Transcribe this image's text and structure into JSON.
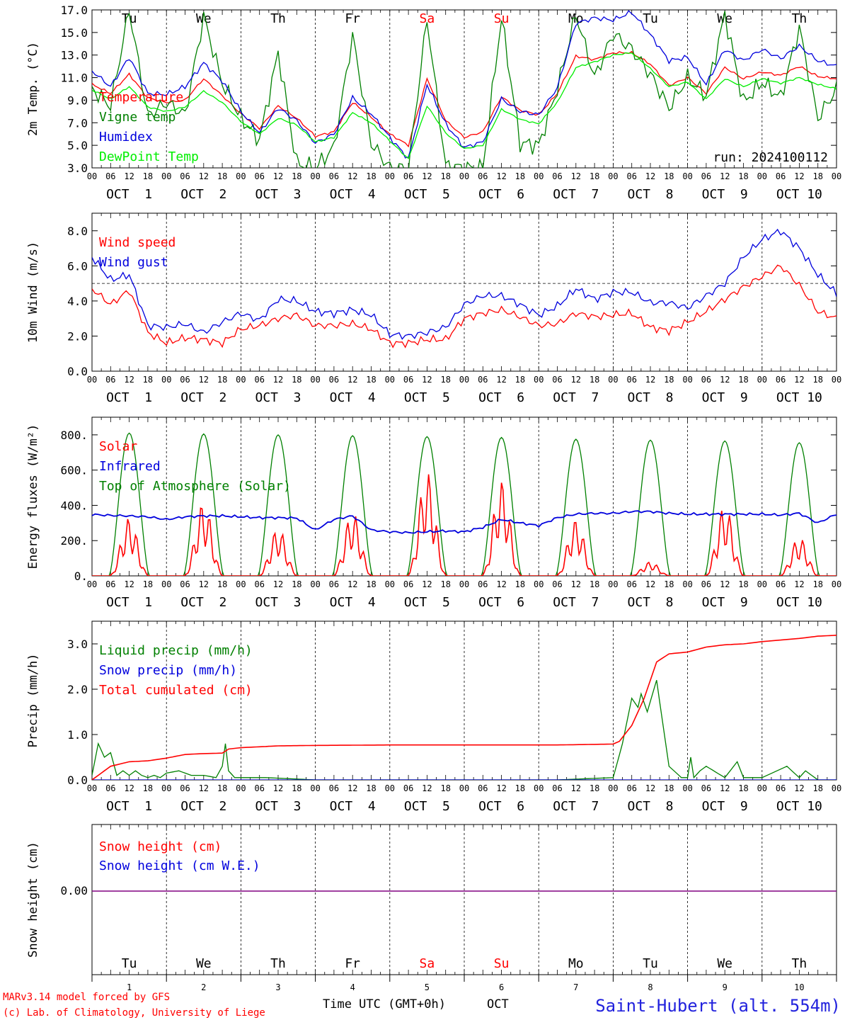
{
  "chart_data": [
    {
      "type": "line",
      "ylabel": "2m Temp. (°C)",
      "ylim": [
        3.0,
        17.0
      ],
      "yticks": [
        "3.0",
        "5.0",
        "7.0",
        "9.0",
        "11.0",
        "13.0",
        "15.0",
        "17.0"
      ],
      "run_label": "run: 2024100112",
      "legend_position": "left",
      "x_unit": "hours since 2024-10-01 00 UTC",
      "series": [
        {
          "name": "Temperature",
          "color": "#ff0000",
          "x": [
            0,
            6,
            12,
            18,
            24,
            30,
            36,
            42,
            48,
            54,
            60,
            66,
            72,
            78,
            84,
            90,
            96,
            102,
            108,
            114,
            120,
            126,
            132,
            138,
            144,
            150,
            156,
            162,
            168,
            174,
            180,
            186,
            192,
            198,
            204,
            210,
            216,
            222,
            228,
            234,
            240
          ],
          "values": [
            10.4,
            9.6,
            11.3,
            9.2,
            8.8,
            9.0,
            10.9,
            9.4,
            7.8,
            6.5,
            8.5,
            7.4,
            5.8,
            6.2,
            8.8,
            7.5,
            6.0,
            5.0,
            10.9,
            7.2,
            5.7,
            6.2,
            9.3,
            8.1,
            7.7,
            9.6,
            12.9,
            12.6,
            13.2,
            13.2,
            12.2,
            10.3,
            11.0,
            9.6,
            11.9,
            10.9,
            11.5,
            11.2,
            12.0,
            11.1,
            10.9
          ]
        },
        {
          "name": "Vigne temp",
          "color": "#008000",
          "x": [
            0,
            6,
            12,
            18,
            24,
            30,
            36,
            42,
            48,
            54,
            60,
            66,
            72,
            78,
            84,
            90,
            96,
            102,
            108,
            114,
            120,
            126,
            132,
            138,
            144,
            150,
            156,
            162,
            168,
            174,
            180,
            186,
            192,
            198,
            204,
            210,
            216,
            222,
            228,
            234,
            240
          ],
          "values": [
            10.0,
            8.5,
            17.0,
            7.6,
            8.8,
            7.7,
            16.4,
            10.5,
            7.4,
            5.5,
            13.2,
            3.4,
            3.0,
            4.8,
            14.7,
            5.2,
            3.0,
            3.0,
            16.2,
            3.2,
            3.0,
            3.0,
            16.3,
            5.2,
            5.0,
            10.0,
            16.6,
            11.0,
            14.9,
            13.5,
            11.3,
            8.3,
            11.0,
            9.4,
            16.6,
            8.8,
            10.6,
            9.2,
            15.4,
            7.4,
            10.0
          ]
        },
        {
          "name": "Humidex",
          "color": "#0000dd",
          "x": [
            0,
            6,
            12,
            18,
            24,
            30,
            36,
            42,
            48,
            54,
            60,
            66,
            72,
            78,
            84,
            90,
            96,
            102,
            108,
            114,
            120,
            126,
            132,
            138,
            144,
            150,
            156,
            162,
            168,
            174,
            180,
            186,
            192,
            198,
            204,
            210,
            216,
            222,
            228,
            234,
            240
          ],
          "values": [
            11.6,
            10.2,
            12.8,
            9.6,
            9.5,
            10.2,
            12.3,
            10.7,
            8.0,
            6.1,
            8.3,
            7.2,
            5.2,
            6.0,
            9.2,
            7.8,
            5.7,
            3.8,
            10.4,
            6.9,
            4.8,
            5.3,
            9.1,
            8.0,
            7.7,
            10.1,
            15.8,
            16.3,
            16.1,
            16.8,
            14.8,
            12.5,
            12.8,
            10.4,
            13.5,
            12.5,
            13.5,
            12.7,
            13.8,
            12.5,
            12.0
          ]
        },
        {
          "name": "DewPoint Temp",
          "color": "#00ee00",
          "x": [
            0,
            6,
            12,
            18,
            24,
            30,
            36,
            42,
            48,
            54,
            60,
            66,
            72,
            78,
            84,
            90,
            96,
            102,
            108,
            114,
            120,
            126,
            132,
            138,
            144,
            150,
            156,
            162,
            168,
            174,
            180,
            186,
            192,
            198,
            204,
            210,
            216,
            222,
            228,
            234,
            240
          ],
          "values": [
            9.9,
            9.1,
            10.2,
            8.4,
            8.0,
            8.4,
            9.8,
            8.8,
            7.1,
            6.0,
            7.4,
            6.8,
            5.3,
            5.7,
            7.9,
            7.0,
            5.4,
            3.8,
            8.5,
            6.1,
            4.7,
            5.0,
            8.2,
            7.3,
            6.9,
            8.8,
            11.9,
            12.4,
            13.0,
            13.2,
            11.8,
            10.2,
            10.6,
            9.1,
            10.9,
            10.2,
            10.9,
            10.5,
            11.0,
            10.4,
            10.0
          ]
        }
      ]
    },
    {
      "type": "line",
      "ylabel": "10m Wind (m/s)",
      "ylim": [
        0.0,
        9.0
      ],
      "yticks": [
        "0.0",
        "2.0",
        "4.0",
        "6.0",
        "8.0"
      ],
      "reference_line": 5.0,
      "legend_position": "left",
      "series": [
        {
          "name": "Wind speed",
          "color": "#ff0000",
          "x": [
            0,
            6,
            12,
            18,
            24,
            30,
            36,
            42,
            48,
            54,
            60,
            66,
            72,
            78,
            84,
            90,
            96,
            102,
            108,
            114,
            120,
            126,
            132,
            138,
            144,
            150,
            156,
            162,
            168,
            174,
            180,
            186,
            192,
            198,
            204,
            210,
            216,
            222,
            228,
            234,
            240
          ],
          "values": [
            4.7,
            3.8,
            4.6,
            2.2,
            1.6,
            1.9,
            1.8,
            1.6,
            2.4,
            2.6,
            3.0,
            3.2,
            2.6,
            2.6,
            2.7,
            2.4,
            1.6,
            1.6,
            1.8,
            1.8,
            3.0,
            3.3,
            3.5,
            3.1,
            2.6,
            2.7,
            3.3,
            3.1,
            3.2,
            3.3,
            2.5,
            2.3,
            2.8,
            3.4,
            4.1,
            4.8,
            5.4,
            6.0,
            4.9,
            3.4,
            3.0
          ]
        },
        {
          "name": "Wind gust",
          "color": "#0000dd",
          "x": [
            0,
            6,
            12,
            18,
            24,
            30,
            36,
            42,
            48,
            54,
            60,
            66,
            72,
            78,
            84,
            90,
            96,
            102,
            108,
            114,
            120,
            126,
            132,
            138,
            144,
            150,
            156,
            162,
            168,
            174,
            180,
            186,
            192,
            198,
            204,
            210,
            216,
            222,
            228,
            234,
            240
          ],
          "values": [
            6.5,
            5.2,
            5.5,
            2.6,
            2.5,
            2.7,
            2.2,
            2.8,
            3.3,
            2.9,
            4.1,
            4.0,
            3.4,
            3.3,
            3.5,
            3.2,
            2.1,
            2.0,
            2.2,
            2.5,
            3.8,
            4.3,
            4.3,
            3.8,
            3.2,
            3.7,
            4.7,
            4.1,
            4.5,
            4.5,
            3.9,
            3.9,
            3.6,
            4.3,
            5.0,
            6.5,
            7.5,
            8.0,
            7.0,
            5.5,
            4.4
          ]
        }
      ]
    },
    {
      "type": "line",
      "ylabel": "Energy fluxes (W/m²)",
      "ylim": [
        0,
        900
      ],
      "yticks": [
        "0.",
        "200.",
        "400.",
        "600.",
        "800."
      ],
      "legend_position": "left",
      "solar_peaks": [
        330,
        420,
        270,
        360,
        590,
        540,
        320,
        80,
        400,
        220
      ],
      "toa_peaks": [
        810,
        805,
        800,
        795,
        790,
        785,
        775,
        770,
        765,
        755
      ],
      "series": [
        {
          "name": "Solar",
          "color": "#ff0000"
        },
        {
          "name": "Infrared",
          "color": "#0000dd",
          "x": [
            0,
            6,
            12,
            18,
            24,
            30,
            36,
            42,
            48,
            54,
            60,
            66,
            72,
            78,
            84,
            90,
            96,
            102,
            108,
            114,
            120,
            126,
            132,
            138,
            144,
            150,
            156,
            162,
            168,
            174,
            180,
            186,
            192,
            198,
            204,
            210,
            216,
            222,
            228,
            234,
            240
          ],
          "values": [
            348,
            343,
            340,
            335,
            320,
            335,
            340,
            340,
            335,
            330,
            330,
            328,
            260,
            320,
            340,
            260,
            250,
            245,
            250,
            255,
            250,
            275,
            320,
            300,
            285,
            330,
            350,
            355,
            355,
            365,
            365,
            355,
            350,
            350,
            350,
            350,
            350,
            345,
            355,
            300,
            350
          ]
        },
        {
          "name": "Top of Atmosphere (Solar)",
          "color": "#008000"
        }
      ]
    },
    {
      "type": "line",
      "ylabel": "Precip (mm/h)",
      "ylim": [
        0.0,
        3.5
      ],
      "yticks": [
        "0.0",
        "1.0",
        "2.0",
        "3.0"
      ],
      "legend_position": "left",
      "series": [
        {
          "name": "Liquid precip (mm/h)",
          "color": "#008000",
          "x": [
            0,
            2,
            4,
            6,
            8,
            10,
            12,
            14,
            16,
            18,
            20,
            22,
            24,
            28,
            32,
            36,
            40,
            42,
            43,
            44,
            46,
            48,
            56,
            72,
            90,
            120,
            150,
            168,
            171,
            174,
            176,
            177,
            179,
            182,
            186,
            190,
            192,
            193,
            194,
            196,
            198,
            204,
            208,
            210,
            213,
            216,
            224,
            228,
            230,
            234,
            240
          ],
          "values": [
            0.1,
            0.8,
            0.5,
            0.6,
            0.1,
            0.2,
            0.1,
            0.2,
            0.1,
            0.05,
            0.1,
            0.05,
            0.15,
            0.2,
            0.1,
            0.1,
            0.05,
            0.3,
            0.8,
            0.2,
            0.05,
            0.05,
            0.05,
            0.0,
            0.0,
            0.0,
            0.0,
            0.05,
            0.8,
            1.8,
            1.6,
            1.9,
            1.5,
            2.2,
            0.3,
            0.05,
            0.05,
            0.5,
            0.05,
            0.2,
            0.3,
            0.05,
            0.4,
            0.05,
            0.05,
            0.05,
            0.3,
            0.05,
            0.2,
            0.0,
            0.0
          ]
        },
        {
          "name": "Snow precip (mm/h)",
          "color": "#0000dd",
          "x": [
            0,
            240
          ],
          "values": [
            0.0,
            0.0
          ]
        },
        {
          "name": "Total cumulated (cm)",
          "color": "#ff0000",
          "x": [
            0,
            6,
            12,
            18,
            24,
            30,
            36,
            42,
            44,
            48,
            60,
            72,
            96,
            120,
            150,
            168,
            170,
            174,
            178,
            182,
            186,
            192,
            198,
            204,
            210,
            216,
            228,
            234,
            240
          ],
          "values": [
            0.0,
            0.3,
            0.4,
            0.42,
            0.48,
            0.56,
            0.58,
            0.59,
            0.68,
            0.71,
            0.75,
            0.76,
            0.77,
            0.77,
            0.77,
            0.79,
            0.85,
            1.2,
            1.8,
            2.6,
            2.78,
            2.82,
            2.93,
            2.98,
            3.0,
            3.05,
            3.12,
            3.17,
            3.19
          ]
        }
      ]
    },
    {
      "type": "line",
      "ylabel": "Snow height (cm)",
      "yticks": [
        "0.00"
      ],
      "legend_position": "left",
      "series": [
        {
          "name": "Snow height (cm)",
          "color": "#ff0000"
        },
        {
          "name": "Snow height (cm W.E.)",
          "color": "#0000dd"
        }
      ]
    }
  ],
  "x_axis": {
    "hour_ticks": [
      "00",
      "06",
      "12",
      "18"
    ],
    "end_tick": "00",
    "dates": [
      "OCT  1",
      "OCT  2",
      "OCT  3",
      "OCT  4",
      "OCT  5",
      "OCT  6",
      "OCT  7",
      "OCT  8",
      "OCT  9",
      "OCT 10"
    ],
    "weekdays": [
      "Tu",
      "We",
      "Th",
      "Fr",
      "Sa",
      "Su",
      "Mo",
      "Tu",
      "We",
      "Th"
    ],
    "weekend_color": "#ff0000",
    "weekend_indices": [
      4,
      5
    ],
    "day_numbers": [
      "1",
      "2",
      "3",
      "4",
      "5",
      "6",
      "7",
      "8",
      "9",
      "10"
    ],
    "label": "Time UTC (GMT+0h)",
    "month": "OCT"
  },
  "footer": {
    "credit_line1": "MARv3.14 model forced by GFS",
    "credit_line2": "(c) Lab. of Climatology, University of Liege",
    "station": "Saint-Hubert (alt. 554m)"
  }
}
